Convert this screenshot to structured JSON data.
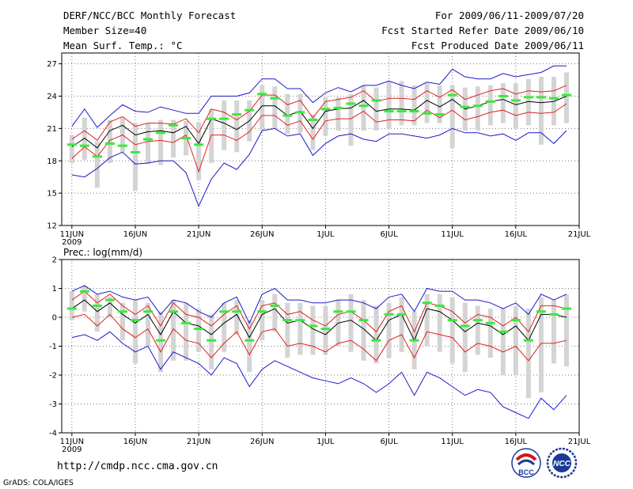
{
  "header": {
    "title": "DERF/NCC/BCC Monthly Forecast",
    "member_size": "Member Size=40",
    "variable": "Mean Surf. Temp.: °C",
    "period": "For 2009/06/11-2009/07/20",
    "started": "Fcst Started Refer Date 2009/06/10",
    "produced": "Fcst Produced Date 2009/06/11"
  },
  "footer": {
    "url": "http://cmdp.ncc.cma.gov.cn",
    "grads": "GrADS: COLA/IGES",
    "logo_bcc": "BCC",
    "logo_ncc": "NCC"
  },
  "colors": {
    "ensemble_mean": "#000000",
    "spread": "#e02020",
    "extreme": "#1a1acc",
    "box": "#d4d4d4",
    "obs": "#3ce83c"
  },
  "chart_data": [
    {
      "type": "line",
      "title": "Mean Surf. Temp.: °C",
      "x_ticks": [
        "11JUN",
        "16JUN",
        "21JUN",
        "26JUN",
        "1JUL",
        "6JUL",
        "11JUL",
        "16JUL",
        "21JUL"
      ],
      "x_tick_days": [
        0,
        5,
        10,
        15,
        20,
        25,
        30,
        35,
        40
      ],
      "year_label": "2009",
      "xlim": [
        -0.8,
        40
      ],
      "ylim": [
        12,
        28
      ],
      "y_ticks": [
        12,
        15,
        18,
        21,
        24,
        27
      ],
      "days": [
        0,
        1,
        2,
        3,
        4,
        5,
        6,
        7,
        8,
        9,
        10,
        11,
        12,
        13,
        14,
        15,
        16,
        17,
        18,
        19,
        20,
        21,
        22,
        23,
        24,
        25,
        26,
        27,
        28,
        29,
        30,
        31,
        32,
        33,
        34,
        35,
        36,
        37,
        38,
        39
      ],
      "series": [
        {
          "name": "ensemble mean",
          "values": [
            19.3,
            20.1,
            19.2,
            20.8,
            21.3,
            20.4,
            20.7,
            20.8,
            20.6,
            21.2,
            19.6,
            21.9,
            21.5,
            20.9,
            21.7,
            23.1,
            23.1,
            22.2,
            22.6,
            21.0,
            22.6,
            22.8,
            22.9,
            23.6,
            22.6,
            22.8,
            22.8,
            22.7,
            23.6,
            23.0,
            23.7,
            22.8,
            23.1,
            23.5,
            23.7,
            23.2,
            23.5,
            23.4,
            23.5,
            24.0
          ]
        },
        {
          "name": "mean + spread",
          "values": [
            20.0,
            20.8,
            19.9,
            21.6,
            22.1,
            21.2,
            21.5,
            21.5,
            21.4,
            21.9,
            20.6,
            22.8,
            22.5,
            21.8,
            22.6,
            24.1,
            24.1,
            23.2,
            23.6,
            22.0,
            23.5,
            23.7,
            23.9,
            24.5,
            23.5,
            23.8,
            23.8,
            23.7,
            24.5,
            23.9,
            24.6,
            23.7,
            24.1,
            24.5,
            24.7,
            24.2,
            24.5,
            24.4,
            24.5,
            25.0
          ]
        },
        {
          "name": "mean - spread",
          "values": [
            18.2,
            19.3,
            18.4,
            19.9,
            20.4,
            19.5,
            19.8,
            19.9,
            19.7,
            20.4,
            17.0,
            20.4,
            20.4,
            19.9,
            20.7,
            22.2,
            22.2,
            21.3,
            21.7,
            20.0,
            21.7,
            21.9,
            21.9,
            22.6,
            21.6,
            21.8,
            21.8,
            21.7,
            22.7,
            22.0,
            22.7,
            21.8,
            22.1,
            22.5,
            22.7,
            22.2,
            22.5,
            22.4,
            22.5,
            23.3
          ]
        },
        {
          "name": "ensemble max",
          "values": [
            21.2,
            22.8,
            21.1,
            22.2,
            23.2,
            22.6,
            22.5,
            23.0,
            22.7,
            22.4,
            22.4,
            24.0,
            24.0,
            24.0,
            24.3,
            25.6,
            25.6,
            24.7,
            24.7,
            23.4,
            24.3,
            24.8,
            24.4,
            25.0,
            25.0,
            25.4,
            25.0,
            24.7,
            25.3,
            25.1,
            26.5,
            25.8,
            25.6,
            25.6,
            26.1,
            25.8,
            26.0,
            26.2,
            26.8,
            26.8
          ]
        },
        {
          "name": "ensemble min",
          "values": [
            16.7,
            16.5,
            17.3,
            18.3,
            18.8,
            17.7,
            17.8,
            18.0,
            18.0,
            16.9,
            13.8,
            16.3,
            17.8,
            17.2,
            18.6,
            20.8,
            21.0,
            20.3,
            20.5,
            18.5,
            19.6,
            20.3,
            20.5,
            20.0,
            19.8,
            20.5,
            20.5,
            20.3,
            20.1,
            20.4,
            21.0,
            20.6,
            20.6,
            20.3,
            20.5,
            19.9,
            20.6,
            20.6,
            19.6,
            20.8
          ]
        },
        {
          "name": "observed / analogue",
          "values": [
            19.5,
            19.4,
            18.4,
            19.6,
            19.4,
            18.8,
            20.0,
            20.6,
            21.3,
            20.1,
            19.5,
            21.9,
            21.9,
            22.3,
            22.7,
            24.2,
            23.8,
            22.2,
            22.5,
            21.8,
            22.8,
            22.9,
            23.3,
            23.1,
            23.6,
            22.6,
            22.6,
            22.6,
            22.4,
            22.3,
            24.1,
            23.0,
            23.1,
            23.5,
            24.0,
            23.6,
            23.9,
            23.9,
            23.8,
            24.1
          ]
        }
      ],
      "boxes": {
        "top": [
          20.4,
          22.0,
          19.8,
          21.8,
          22.0,
          21.5,
          21.5,
          21.8,
          21.8,
          21.7,
          21.6,
          22.8,
          23.6,
          23.6,
          23.6,
          25.0,
          24.9,
          24.2,
          24.2,
          22.3,
          23.9,
          23.9,
          24.2,
          25.0,
          24.8,
          25.3,
          25.4,
          25.0,
          25.2,
          25.0,
          25.0,
          24.8,
          24.9,
          25.0,
          25.2,
          25.2,
          25.6,
          25.8,
          25.8,
          26.2
        ],
        "bottom": [
          17.8,
          18.1,
          15.5,
          17.8,
          18.8,
          15.2,
          17.7,
          17.6,
          18.3,
          18.5,
          16.2,
          17.8,
          19.0,
          18.8,
          19.8,
          20.8,
          21.0,
          20.5,
          20.6,
          19.0,
          20.3,
          20.8,
          19.4,
          20.8,
          20.8,
          21.0,
          21.3,
          21.3,
          21.5,
          21.5,
          19.2,
          20.8,
          20.8,
          21.3,
          21.5,
          21.0,
          21.3,
          19.5,
          21.3,
          21.5
        ]
      }
    },
    {
      "type": "line",
      "title": "Prec.: log(mm/d)",
      "x_ticks": [
        "11JUN",
        "16JUN",
        "21JUN",
        "26JUN",
        "1JUL",
        "6JUL",
        "11JUL",
        "16JUL",
        "21JUL"
      ],
      "x_tick_days": [
        0,
        5,
        10,
        15,
        20,
        25,
        30,
        35,
        40
      ],
      "year_label": "2009",
      "xlim": [
        -0.8,
        40
      ],
      "ylim": [
        -4,
        2
      ],
      "y_ticks": [
        -4,
        -3,
        -2,
        -1,
        0,
        1,
        2
      ],
      "days": [
        0,
        1,
        2,
        3,
        4,
        5,
        6,
        7,
        8,
        9,
        10,
        11,
        12,
        13,
        14,
        15,
        16,
        17,
        18,
        19,
        20,
        21,
        22,
        23,
        24,
        25,
        26,
        27,
        28,
        29,
        30,
        31,
        32,
        33,
        34,
        35,
        36,
        37,
        38,
        39
      ],
      "series": [
        {
          "name": "ensemble mean",
          "values": [
            0.3,
            0.6,
            0.2,
            0.5,
            0.1,
            -0.2,
            0.1,
            -0.6,
            0.2,
            -0.2,
            -0.3,
            -0.6,
            -0.2,
            0.1,
            -0.7,
            0.1,
            0.3,
            -0.2,
            -0.1,
            -0.4,
            -0.6,
            -0.2,
            -0.1,
            -0.4,
            -0.8,
            -0.1,
            0.1,
            -0.8,
            0.3,
            0.2,
            -0.1,
            -0.5,
            -0.2,
            -0.3,
            -0.6,
            -0.3,
            -0.8,
            0.1,
            0.1,
            0.0
          ]
        },
        {
          "name": "mean + spread",
          "values": [
            0.6,
            0.9,
            0.5,
            0.8,
            0.4,
            0.1,
            0.4,
            -0.3,
            0.5,
            0.1,
            0.0,
            -0.3,
            0.1,
            0.4,
            -0.4,
            0.4,
            0.5,
            0.1,
            0.2,
            -0.1,
            -0.3,
            0.1,
            0.2,
            -0.1,
            -0.5,
            0.2,
            0.4,
            -0.5,
            0.5,
            0.4,
            0.2,
            -0.2,
            0.1,
            0.0,
            -0.3,
            0.0,
            -0.5,
            0.4,
            0.4,
            0.3
          ]
        },
        {
          "name": "mean - spread",
          "values": [
            0.0,
            0.1,
            -0.3,
            0.1,
            -0.4,
            -0.7,
            -0.4,
            -1.2,
            -0.4,
            -0.8,
            -0.9,
            -1.4,
            -0.9,
            -0.5,
            -1.3,
            -0.5,
            -0.4,
            -1.0,
            -0.9,
            -1.0,
            -1.2,
            -0.9,
            -0.8,
            -1.1,
            -1.5,
            -0.8,
            -0.6,
            -1.4,
            -0.5,
            -0.6,
            -0.7,
            -1.2,
            -0.9,
            -1.0,
            -1.2,
            -1.0,
            -1.5,
            -0.9,
            -0.9,
            -0.8
          ]
        },
        {
          "name": "ensemble max",
          "values": [
            0.9,
            1.1,
            0.8,
            0.9,
            0.7,
            0.6,
            0.7,
            0.1,
            0.6,
            0.5,
            0.2,
            0.0,
            0.5,
            0.7,
            -0.2,
            0.8,
            1.0,
            0.6,
            0.6,
            0.5,
            0.5,
            0.6,
            0.6,
            0.5,
            0.3,
            0.7,
            0.8,
            0.2,
            1.0,
            0.9,
            0.9,
            0.6,
            0.6,
            0.5,
            0.3,
            0.5,
            0.1,
            0.8,
            0.6,
            0.8
          ]
        },
        {
          "name": "ensemble min",
          "values": [
            -0.7,
            -0.6,
            -0.8,
            -0.5,
            -0.9,
            -1.2,
            -1.0,
            -1.8,
            -1.2,
            -1.4,
            -1.6,
            -2.0,
            -1.4,
            -1.6,
            -2.4,
            -1.8,
            -1.5,
            -1.7,
            -1.9,
            -2.1,
            -2.2,
            -2.3,
            -2.1,
            -2.3,
            -2.6,
            -2.3,
            -1.9,
            -2.7,
            -1.9,
            -2.1,
            -2.4,
            -2.7,
            -2.5,
            -2.6,
            -3.1,
            -3.3,
            -3.5,
            -2.8,
            -3.2,
            -2.7
          ]
        },
        {
          "name": "observed / analogue",
          "values": [
            0.3,
            0.9,
            0.4,
            0.6,
            0.2,
            -0.1,
            0.2,
            -0.8,
            0.2,
            -0.2,
            -0.4,
            -0.8,
            0.2,
            0.2,
            -0.8,
            0.2,
            0.4,
            -0.1,
            -0.1,
            -0.3,
            -0.4,
            0.2,
            0.2,
            -0.1,
            -0.8,
            0.1,
            0.1,
            -0.8,
            0.5,
            0.4,
            -0.1,
            -0.3,
            -0.1,
            -0.2,
            -0.5,
            -0.1,
            -0.8,
            0.2,
            0.1,
            0.3
          ]
        }
      ],
      "boxes": {
        "top": [
          0.9,
          1.1,
          0.8,
          0.7,
          0.5,
          0.6,
          0.5,
          0.2,
          0.6,
          0.5,
          0.3,
          0.1,
          0.5,
          0.6,
          -0.1,
          0.6,
          0.8,
          0.5,
          0.5,
          0.4,
          0.4,
          0.6,
          0.8,
          0.6,
          0.4,
          0.5,
          0.7,
          0.2,
          0.8,
          0.8,
          0.7,
          0.5,
          0.4,
          0.3,
          0.3,
          0.4,
          0.3,
          0.7,
          0.6,
          0.8
        ],
        "bottom": [
          -0.1,
          0.2,
          -0.5,
          0.0,
          -0.8,
          -1.6,
          -1.0,
          -1.9,
          -1.5,
          -1.5,
          -1.2,
          -1.8,
          -1.2,
          -0.6,
          -1.9,
          -0.8,
          -0.5,
          -1.4,
          -1.3,
          -1.3,
          -1.3,
          -1.0,
          -1.2,
          -1.5,
          -1.6,
          -1.4,
          -1.2,
          -1.8,
          -1.0,
          -1.2,
          -1.6,
          -1.9,
          -1.3,
          -1.4,
          -2.0,
          -2.0,
          -2.8,
          -2.6,
          -1.6,
          -1.7
        ]
      }
    }
  ]
}
